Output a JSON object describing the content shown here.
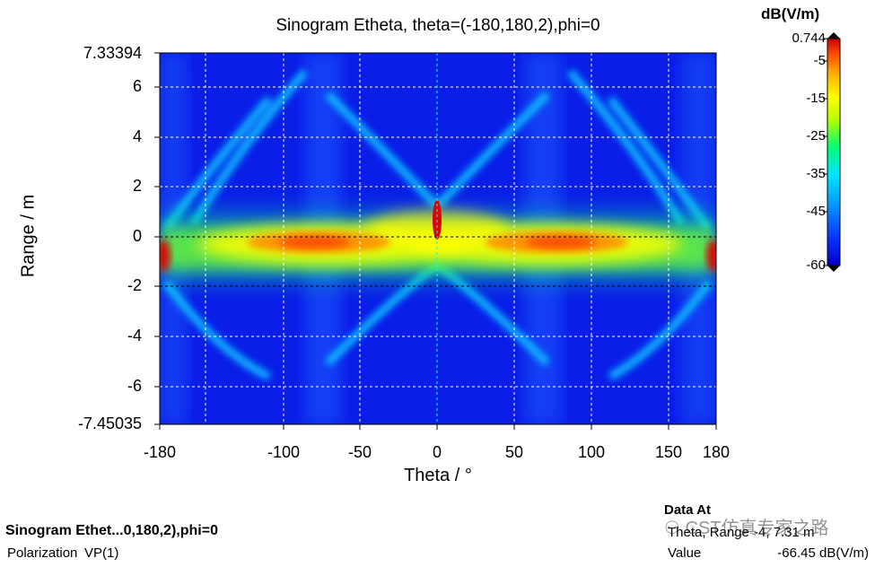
{
  "chart_data": {
    "type": "heatmap",
    "title": "Sinogram Etheta, theta=(-180,180,2),phi=0",
    "xlabel": "Theta / °",
    "ylabel": "Range / m",
    "xlim": [
      -180,
      180
    ],
    "ylim": [
      -7.45035,
      7.33394
    ],
    "x_ticks": [
      "-180",
      "-100",
      "-50",
      "0",
      "50",
      "100",
      "150",
      "180"
    ],
    "x_tick_values": [
      -180,
      -100,
      -50,
      0,
      50,
      100,
      150,
      180
    ],
    "x_grid_values": [
      -180,
      -150,
      -100,
      -50,
      0,
      50,
      100,
      150,
      180
    ],
    "y_ticks": [
      "7.33394",
      "6",
      "4",
      "2",
      "0",
      "-2",
      "-4",
      "-6",
      "-7.45035"
    ],
    "y_tick_values": [
      7.33394,
      6,
      4,
      2,
      0,
      -2,
      -4,
      -6,
      -7.45035
    ],
    "grid": true,
    "colorbar": {
      "title": "dB(V/m)",
      "ticks": [
        "0.744",
        "-5",
        "-15",
        "-25",
        "-35",
        "-45",
        "-60"
      ],
      "tick_values": [
        0.744,
        -5,
        -15,
        -25,
        -35,
        -45,
        -60
      ],
      "range": [
        -60,
        0.744
      ],
      "colormap": [
        "#0000c8",
        "#0a32ff",
        "#00a0ff",
        "#00e6ff",
        "#00ff78",
        "#b4ff00",
        "#ffff00",
        "#ffb400",
        "#ff5000",
        "#e60000",
        "#b40000"
      ]
    },
    "features": [
      {
        "name": "range-band",
        "theta_range": [
          -180,
          180
        ],
        "range_center": -0.6,
        "level_db": -20
      },
      {
        "name": "peak-left",
        "theta": -75,
        "range": -0.3,
        "level_db": -8
      },
      {
        "name": "peak-right",
        "theta": 80,
        "range": -0.3,
        "level_db": -8
      },
      {
        "name": "peak-center",
        "theta": 0,
        "range": 0.6,
        "level_db": -3
      },
      {
        "name": "peak-edges",
        "theta": [
          -180,
          180
        ],
        "range": -0.6,
        "level_db": -3
      },
      {
        "name": "x-diagonals",
        "level_db": -40
      }
    ]
  },
  "footer": {
    "name": "Sinogram Ethet...0,180,2),phi=0",
    "polarization_label": "Polarization",
    "polarization_value": "VP(1)"
  },
  "data_at": {
    "title": "Data At",
    "row1_label": "Theta, Range",
    "row1_value": "-4, 7.31 m",
    "row2_label": "Value",
    "row2_value": "-66.45 dB(V/m)"
  },
  "watermark": "CST仿真专家之路"
}
